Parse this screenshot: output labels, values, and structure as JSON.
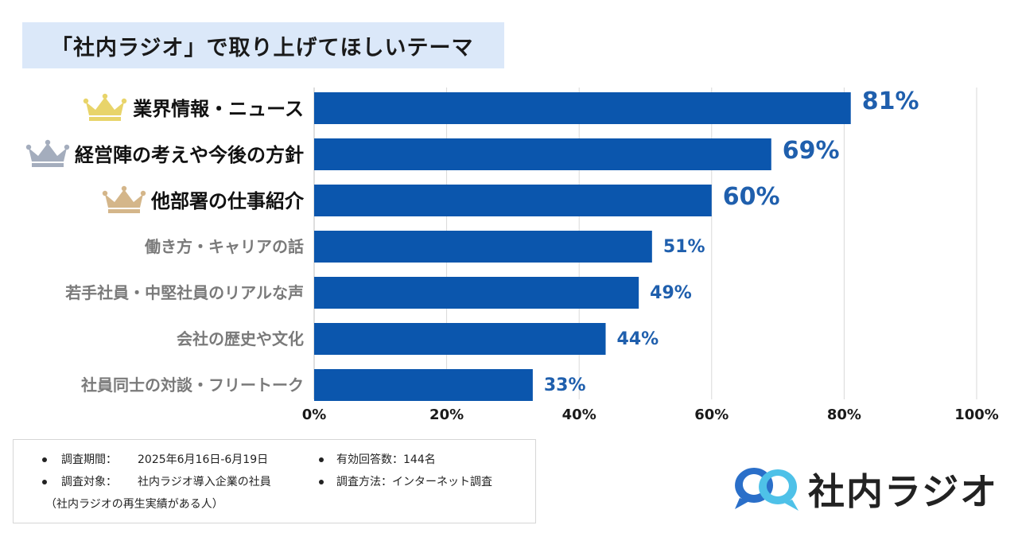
{
  "title": "「社内ラジオ」で取り上げてほしいテーマ",
  "colors": {
    "bar": "#0b56ad",
    "value_text": "#1f5fad",
    "gold": "#e8d46a",
    "silver": "#a4adbd",
    "bronze": "#d4b68a"
  },
  "chart_data": {
    "type": "bar",
    "orientation": "horizontal",
    "title": "「社内ラジオ」で取り上げてほしいテーマ",
    "categories": [
      "業界情報・ニュース",
      "経営陣の考えや今後の方針",
      "他部署の仕事紹介",
      "働き方・キャリアの話",
      "若手社員・中堅社員のリアルな声",
      "会社の歴史や文化",
      "社員同士の対談・フリートーク"
    ],
    "values": [
      81,
      69,
      60,
      51,
      49,
      44,
      33
    ],
    "value_labels": [
      "81%",
      "69%",
      "60%",
      "51%",
      "49%",
      "44%",
      "33%"
    ],
    "rank_icons": [
      "crown-gold",
      "crown-silver",
      "crown-bronze"
    ],
    "xlim": [
      0,
      100
    ],
    "xticks": [
      0,
      20,
      40,
      60,
      80,
      100
    ],
    "xtick_labels": [
      "0%",
      "20%",
      "40%",
      "60%",
      "80%",
      "100%"
    ],
    "grid": true
  },
  "notes": {
    "period_label": "調査期間：",
    "period_value": "2025年6月16日-6月19日",
    "responses": "有効回答数：144名",
    "target_label": "調査対象：",
    "target_value": "社内ラジオ導入企業の社員",
    "target_sub": "（社内ラジオの再生実績がある人）",
    "method": "調査方法：インターネット調査"
  },
  "logo": {
    "text": "社内ラジオ"
  }
}
